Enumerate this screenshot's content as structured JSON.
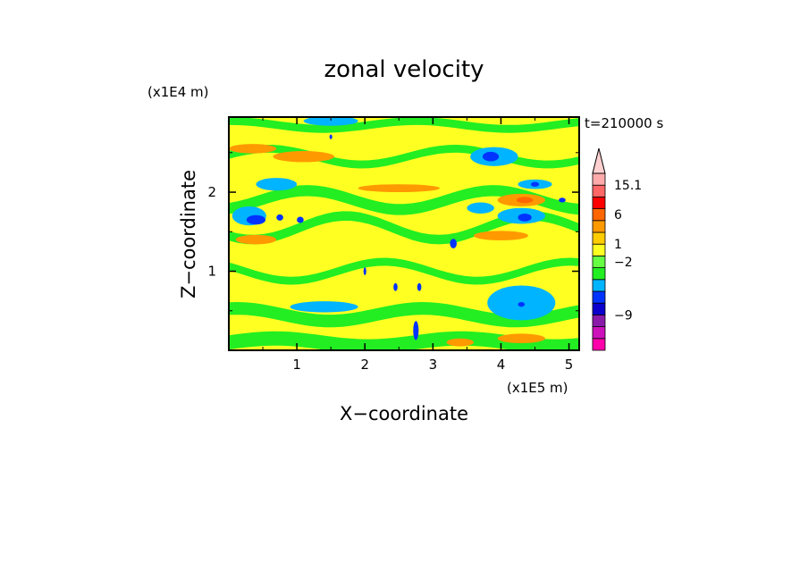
{
  "chart_data": {
    "type": "heatmap",
    "title": "zonal velocity",
    "xlabel": "X−coordinate",
    "ylabel": "Z−coordinate",
    "x_unit": "(x1E5 m)",
    "y_unit": "(x1E4 m)",
    "time_label": "t=210000 s",
    "xlim": [
      0,
      5.15
    ],
    "ylim": [
      0,
      2.95
    ],
    "x_ticks": [
      {
        "value": 1,
        "label": "1"
      },
      {
        "value": 2,
        "label": "2"
      },
      {
        "value": 3,
        "label": "3"
      },
      {
        "value": 4,
        "label": "4"
      },
      {
        "value": 5,
        "label": "5"
      }
    ],
    "y_ticks": [
      {
        "value": 1,
        "label": "1"
      },
      {
        "value": 2,
        "label": "2"
      }
    ],
    "colorbar": {
      "colors": [
        "#ff00aa",
        "#cc11bb",
        "#8a1aaa",
        "#0b00cc",
        "#0033ff",
        "#00b4ff",
        "#22ee22",
        "#66ff44",
        "#ffff22",
        "#ffcc00",
        "#ff9900",
        "#ff6600",
        "#ff0000",
        "#ff6666",
        "#ffaaaa"
      ],
      "overflow_color": "#ffd0d0",
      "labels": [
        {
          "label": "15.1",
          "level": 14
        },
        {
          "label": "6",
          "level": 11.5
        },
        {
          "label": "1",
          "level": 9
        },
        {
          "label": "−2",
          "level": 7.5
        },
        {
          "label": "−9",
          "level": 3
        }
      ]
    },
    "background_color": "#ffff22",
    "bands": [
      {
        "color": "#22ee22",
        "y": 0.1,
        "amp": 0.05,
        "thick": 0.18
      },
      {
        "color": "#22ee22",
        "y": 0.45,
        "amp": 0.08,
        "thick": 0.16
      },
      {
        "color": "#22ee22",
        "y": 1.0,
        "amp": 0.12,
        "thick": 0.1
      },
      {
        "color": "#22ee22",
        "y": 1.55,
        "amp": 0.15,
        "thick": 0.12
      },
      {
        "color": "#22ee22",
        "y": 1.9,
        "amp": 0.12,
        "thick": 0.14
      },
      {
        "color": "#22ee22",
        "y": 2.45,
        "amp": 0.1,
        "thick": 0.1
      },
      {
        "color": "#22ee22",
        "y": 2.85,
        "amp": 0.05,
        "thick": 0.1
      }
    ],
    "blobs": [
      {
        "x": 0.35,
        "y": 2.55,
        "rx": 0.35,
        "ry": 0.06,
        "color": "#ff9900"
      },
      {
        "x": 1.1,
        "y": 2.45,
        "rx": 0.45,
        "ry": 0.07,
        "color": "#ff9900"
      },
      {
        "x": 2.5,
        "y": 2.05,
        "rx": 0.6,
        "ry": 0.05,
        "color": "#ff9900"
      },
      {
        "x": 4.3,
        "y": 1.9,
        "rx": 0.35,
        "ry": 0.08,
        "color": "#ff9900"
      },
      {
        "x": 4.35,
        "y": 1.9,
        "rx": 0.12,
        "ry": 0.04,
        "color": "#ff6600"
      },
      {
        "x": 0.4,
        "y": 1.4,
        "rx": 0.3,
        "ry": 0.06,
        "color": "#ff9900"
      },
      {
        "x": 4.0,
        "y": 1.45,
        "rx": 0.4,
        "ry": 0.06,
        "color": "#ff9900"
      },
      {
        "x": 4.3,
        "y": 0.15,
        "rx": 0.35,
        "ry": 0.06,
        "color": "#ff9900"
      },
      {
        "x": 3.4,
        "y": 0.1,
        "rx": 0.2,
        "ry": 0.05,
        "color": "#ff9900"
      },
      {
        "x": 0.3,
        "y": 1.7,
        "rx": 0.25,
        "ry": 0.12,
        "color": "#00b4ff"
      },
      {
        "x": 0.7,
        "y": 2.1,
        "rx": 0.3,
        "ry": 0.08,
        "color": "#00b4ff"
      },
      {
        "x": 1.5,
        "y": 2.9,
        "rx": 0.4,
        "ry": 0.06,
        "color": "#00b4ff"
      },
      {
        "x": 3.9,
        "y": 2.45,
        "rx": 0.35,
        "ry": 0.12,
        "color": "#00b4ff"
      },
      {
        "x": 4.5,
        "y": 2.1,
        "rx": 0.25,
        "ry": 0.06,
        "color": "#00b4ff"
      },
      {
        "x": 4.3,
        "y": 1.7,
        "rx": 0.35,
        "ry": 0.1,
        "color": "#00b4ff"
      },
      {
        "x": 4.3,
        "y": 0.6,
        "rx": 0.5,
        "ry": 0.22,
        "color": "#00b4ff"
      },
      {
        "x": 1.4,
        "y": 0.55,
        "rx": 0.5,
        "ry": 0.07,
        "color": "#00b4ff"
      },
      {
        "x": 3.7,
        "y": 1.8,
        "rx": 0.2,
        "ry": 0.07,
        "color": "#00b4ff"
      },
      {
        "x": 0.4,
        "y": 1.65,
        "rx": 0.14,
        "ry": 0.06,
        "color": "#0033ff"
      },
      {
        "x": 3.85,
        "y": 2.45,
        "rx": 0.12,
        "ry": 0.06,
        "color": "#0033ff"
      },
      {
        "x": 4.35,
        "y": 1.68,
        "rx": 0.1,
        "ry": 0.05,
        "color": "#0033ff"
      },
      {
        "x": 4.3,
        "y": 0.58,
        "rx": 0.05,
        "ry": 0.03,
        "color": "#0033ff"
      },
      {
        "x": 2.75,
        "y": 0.25,
        "rx": 0.04,
        "ry": 0.12,
        "color": "#0033ff"
      },
      {
        "x": 2.45,
        "y": 0.8,
        "rx": 0.03,
        "ry": 0.05,
        "color": "#0033ff"
      },
      {
        "x": 2.8,
        "y": 0.8,
        "rx": 0.03,
        "ry": 0.05,
        "color": "#0033ff"
      },
      {
        "x": 1.05,
        "y": 1.65,
        "rx": 0.05,
        "ry": 0.04,
        "color": "#0033ff"
      },
      {
        "x": 0.75,
        "y": 1.68,
        "rx": 0.05,
        "ry": 0.04,
        "color": "#0033ff"
      },
      {
        "x": 3.3,
        "y": 1.35,
        "rx": 0.05,
        "ry": 0.06,
        "color": "#0033ff"
      },
      {
        "x": 4.5,
        "y": 2.1,
        "rx": 0.06,
        "ry": 0.03,
        "color": "#0033ff"
      },
      {
        "x": 4.9,
        "y": 1.9,
        "rx": 0.05,
        "ry": 0.03,
        "color": "#0033ff"
      },
      {
        "x": 1.5,
        "y": 2.7,
        "rx": 0.02,
        "ry": 0.03,
        "color": "#0033ff"
      },
      {
        "x": 2.0,
        "y": 1.0,
        "rx": 0.02,
        "ry": 0.05,
        "color": "#0033ff"
      }
    ]
  }
}
